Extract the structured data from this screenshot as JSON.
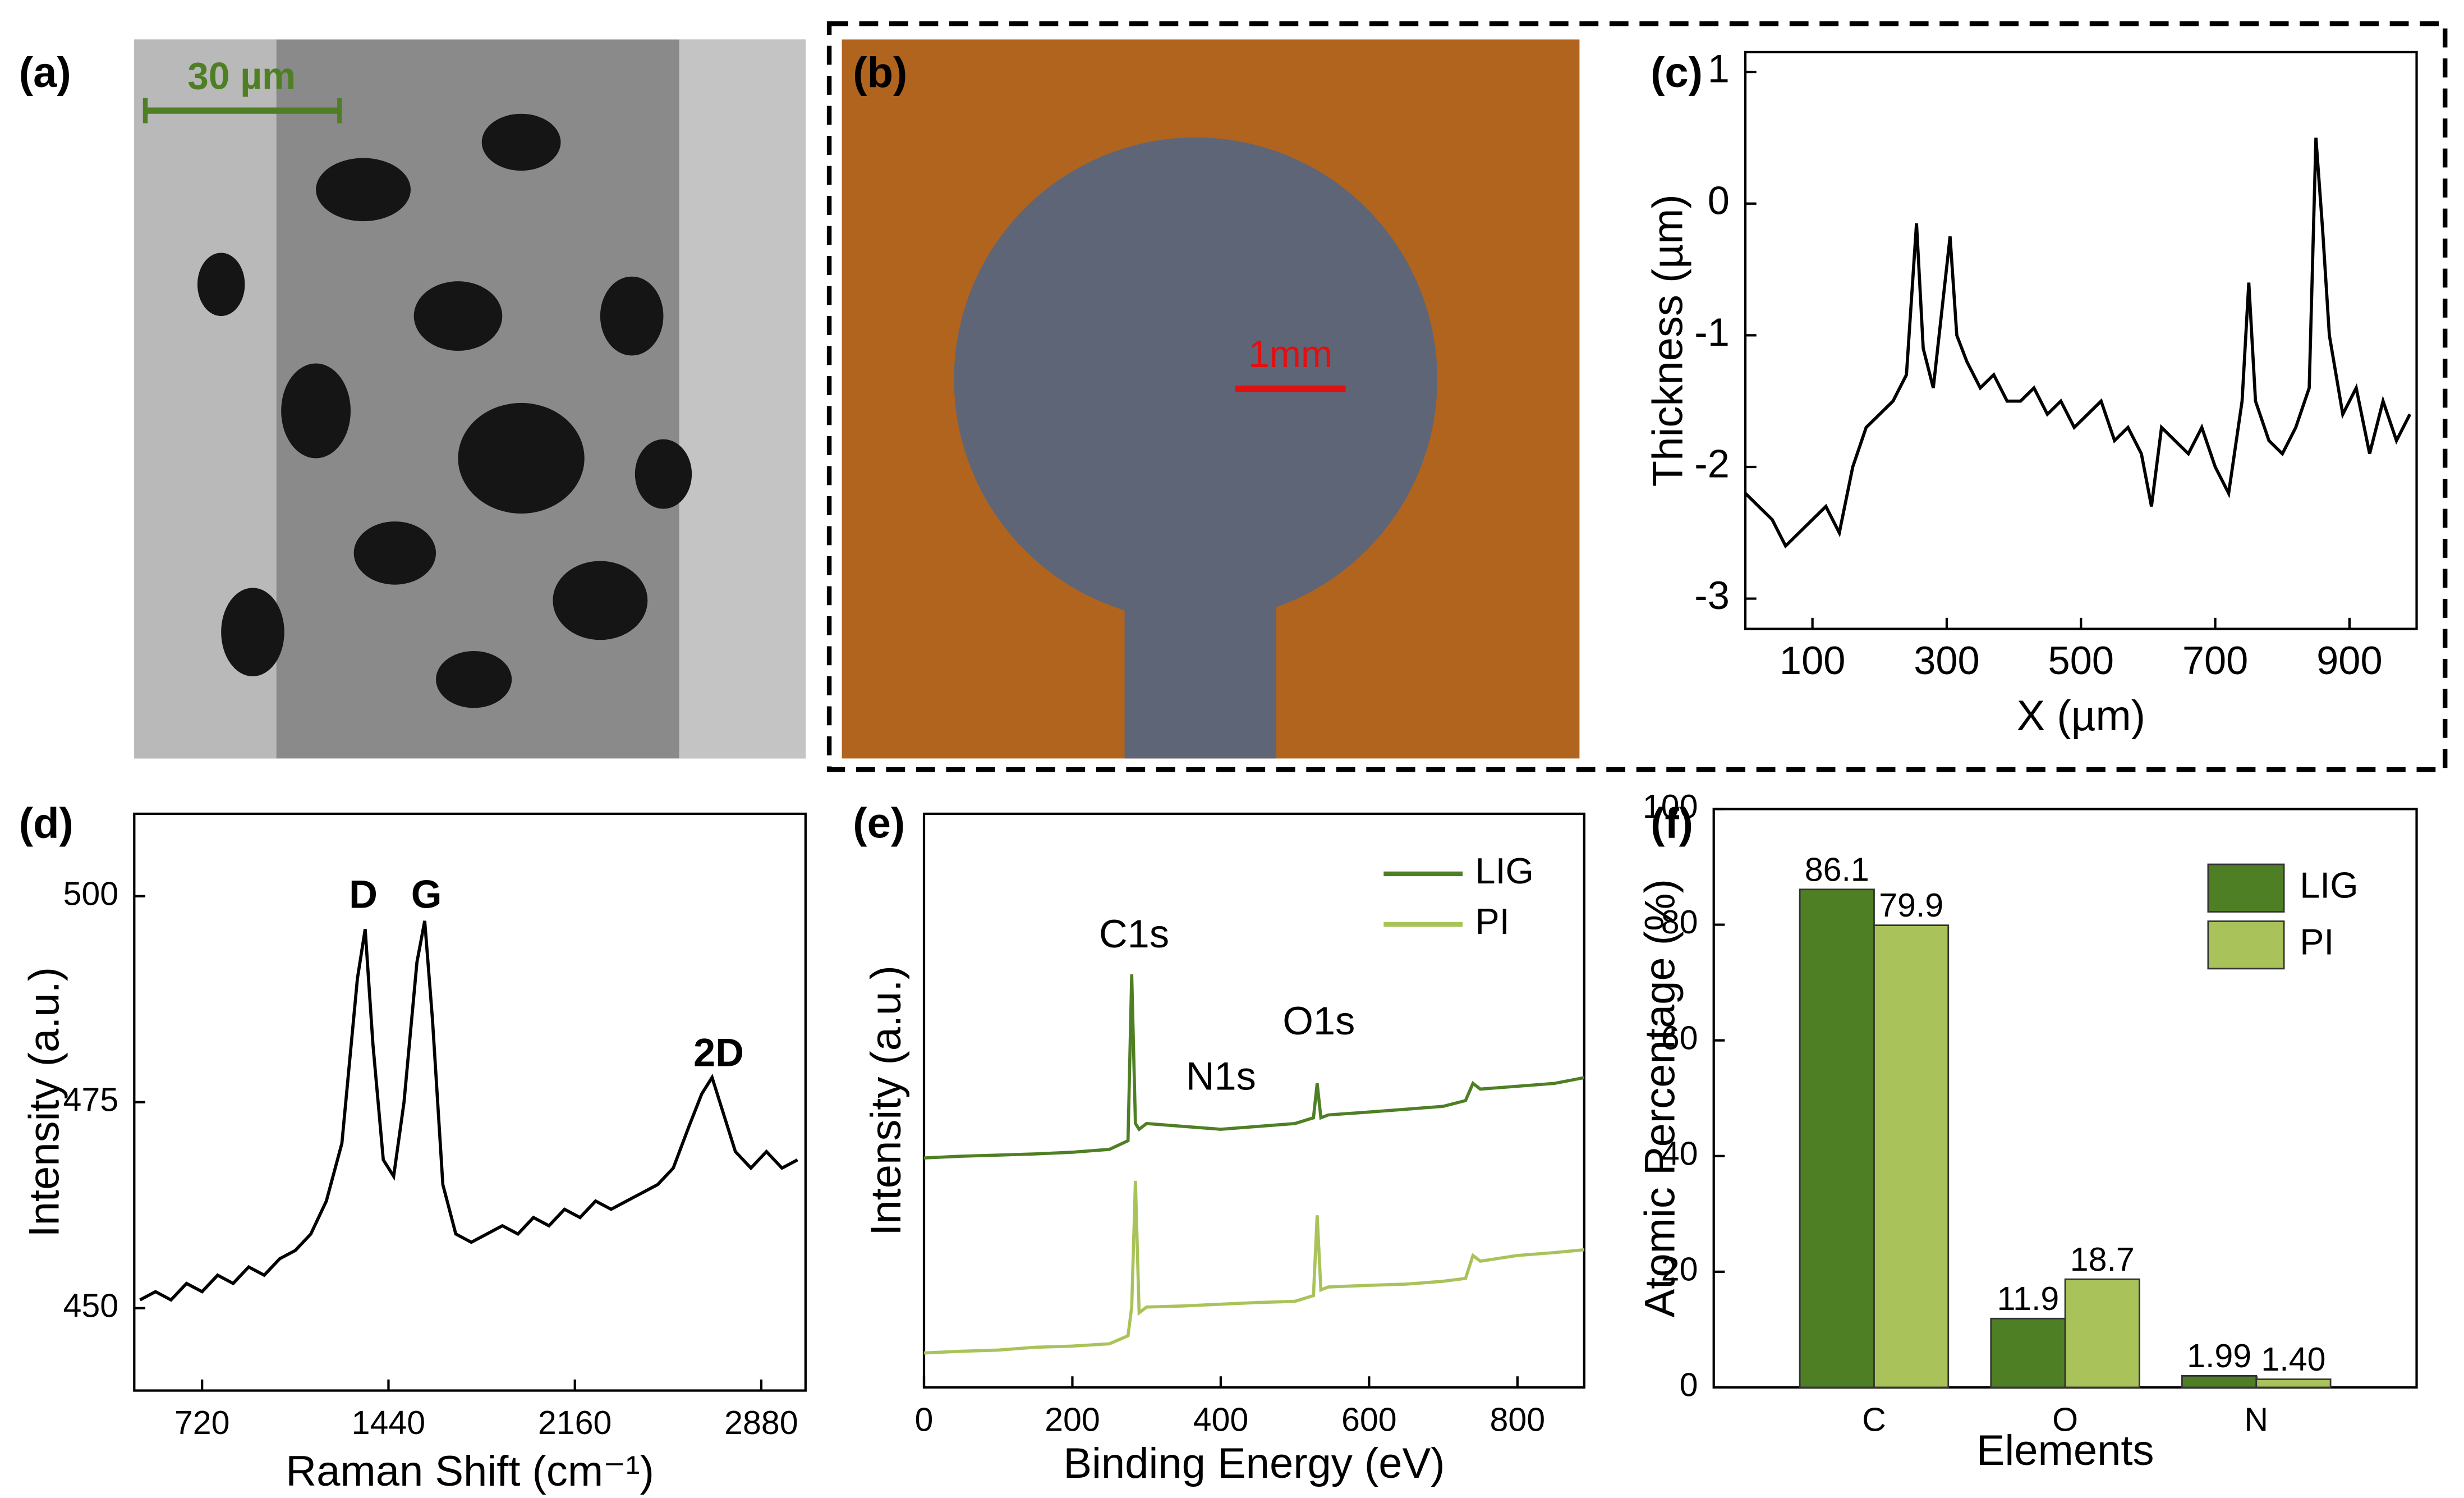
{
  "images": [
    {
      "panel_label": "(a)",
      "scale_bar": "30 µm"
    },
    {
      "panel_label": "(b)",
      "scale_bar": "1mm"
    }
  ],
  "chart_data": [
    {
      "type": "line",
      "panel_label": "(c)",
      "x_label": "X (µm)",
      "y_label": "Thickness (µm)",
      "color": "#000000",
      "x": [
        0,
        20,
        40,
        60,
        80,
        100,
        120,
        140,
        160,
        180,
        200,
        220,
        240,
        255,
        265,
        280,
        305,
        315,
        330,
        350,
        370,
        390,
        410,
        430,
        450,
        470,
        490,
        510,
        530,
        550,
        570,
        590,
        605,
        620,
        640,
        660,
        680,
        700,
        720,
        740,
        750,
        760,
        780,
        800,
        820,
        840,
        850,
        860,
        870,
        890,
        910,
        930,
        950,
        970,
        990
      ],
      "values": [
        -2.2,
        -2.3,
        -2.4,
        -2.6,
        -2.5,
        -2.4,
        -2.3,
        -2.5,
        -2.0,
        -1.7,
        -1.6,
        -1.5,
        -1.3,
        -0.15,
        -1.1,
        -1.4,
        -0.25,
        -1.0,
        -1.2,
        -1.4,
        -1.3,
        -1.5,
        -1.5,
        -1.4,
        -1.6,
        -1.5,
        -1.7,
        -1.6,
        -1.5,
        -1.8,
        -1.7,
        -1.9,
        -2.3,
        -1.7,
        -1.8,
        -1.9,
        -1.7,
        -2.0,
        -2.2,
        -1.5,
        -0.6,
        -1.5,
        -1.8,
        -1.9,
        -1.7,
        -1.4,
        0.5,
        -0.2,
        -1.0,
        -1.6,
        -1.4,
        -1.9,
        -1.5,
        -1.8,
        -1.6
      ],
      "xlim": [
        0,
        1000
      ],
      "xticks": [
        100,
        300,
        500,
        700,
        900
      ],
      "ylim": [
        -3.23,
        1.15
      ],
      "yticks": [
        1,
        0,
        -1,
        -2,
        -3
      ]
    },
    {
      "type": "line",
      "panel_label": "(d)",
      "x_label": "Raman Shift (cm⁻¹)",
      "y_label": "Intensity (a.u.)",
      "color": "#000000",
      "annotations": [
        "D",
        "G",
        "2D"
      ],
      "x": [
        480,
        540,
        600,
        660,
        720,
        780,
        840,
        900,
        960,
        1020,
        1080,
        1140,
        1200,
        1260,
        1320,
        1350,
        1380,
        1420,
        1460,
        1500,
        1550,
        1580,
        1610,
        1650,
        1700,
        1760,
        1820,
        1880,
        1940,
        2000,
        2060,
        2120,
        2180,
        2240,
        2300,
        2360,
        2420,
        2480,
        2540,
        2600,
        2650,
        2690,
        2730,
        2780,
        2840,
        2900,
        2960,
        3020
      ],
      "values": [
        451,
        452,
        451,
        453,
        452,
        454,
        453,
        455,
        454,
        456,
        457,
        459,
        463,
        470,
        490,
        496,
        482,
        468,
        466,
        475,
        492,
        497,
        485,
        465,
        459,
        458,
        459,
        460,
        459,
        461,
        460,
        462,
        461,
        463,
        462,
        463,
        464,
        465,
        467,
        472,
        476,
        478,
        474,
        469,
        467,
        469,
        467,
        468
      ],
      "xlim": [
        458,
        3051
      ],
      "xticks": [
        720,
        1440,
        2160,
        2880
      ],
      "ylim": [
        440,
        510
      ],
      "yticks": [
        450,
        475,
        500
      ]
    },
    {
      "type": "line",
      "panel_label": "(e)",
      "x_label": "Binding Energy (eV)",
      "y_label": "Intensity (a.u.)",
      "annotations": [
        "C1s",
        "N1s",
        "O1s"
      ],
      "x": [
        0,
        50,
        100,
        150,
        200,
        250,
        275,
        280,
        285,
        290,
        300,
        350,
        400,
        450,
        500,
        525,
        530,
        535,
        545,
        600,
        650,
        700,
        730,
        740,
        750,
        800,
        850,
        890
      ],
      "series": [
        {
          "name": "LIG",
          "color": "#4f7f24",
          "values": [
            40,
            40.3,
            40.5,
            40.7,
            41,
            41.5,
            43,
            72,
            46,
            45,
            46,
            45.5,
            45,
            45.5,
            46,
            47,
            53,
            47,
            47.5,
            48,
            48.5,
            49,
            50,
            53,
            52,
            52.5,
            53,
            54
          ]
        },
        {
          "name": "PI",
          "color": "#a9c35a",
          "values": [
            6,
            6.3,
            6.5,
            7,
            7.2,
            7.6,
            9,
            14,
            36,
            13,
            14,
            14.2,
            14.5,
            14.8,
            15,
            16,
            30,
            17,
            17.5,
            17.8,
            18,
            18.5,
            19,
            23,
            22,
            23,
            23.5,
            24
          ]
        }
      ],
      "xlim": [
        0,
        890
      ],
      "xticks": [
        0,
        200,
        400,
        600,
        800
      ],
      "ylim": [
        0,
        100
      ]
    },
    {
      "type": "bar",
      "panel_label": "(f)",
      "x_label": "Elements",
      "y_label": "Atomic Percentage (%)",
      "categories": [
        "C",
        "O",
        "N"
      ],
      "series": [
        {
          "name": "LIG",
          "color": "#4f7f24",
          "values": [
            86.1,
            11.9,
            1.99
          ],
          "value_labels": [
            "86.1",
            "11.9",
            "1.99"
          ]
        },
        {
          "name": "PI",
          "color": "#a9c35a",
          "values": [
            79.9,
            18.7,
            1.4
          ],
          "value_labels": [
            "79.9",
            "18.7",
            "1.40"
          ]
        }
      ],
      "ylim": [
        0,
        100
      ],
      "yticks": [
        0,
        20,
        40,
        60,
        80,
        100
      ]
    }
  ]
}
